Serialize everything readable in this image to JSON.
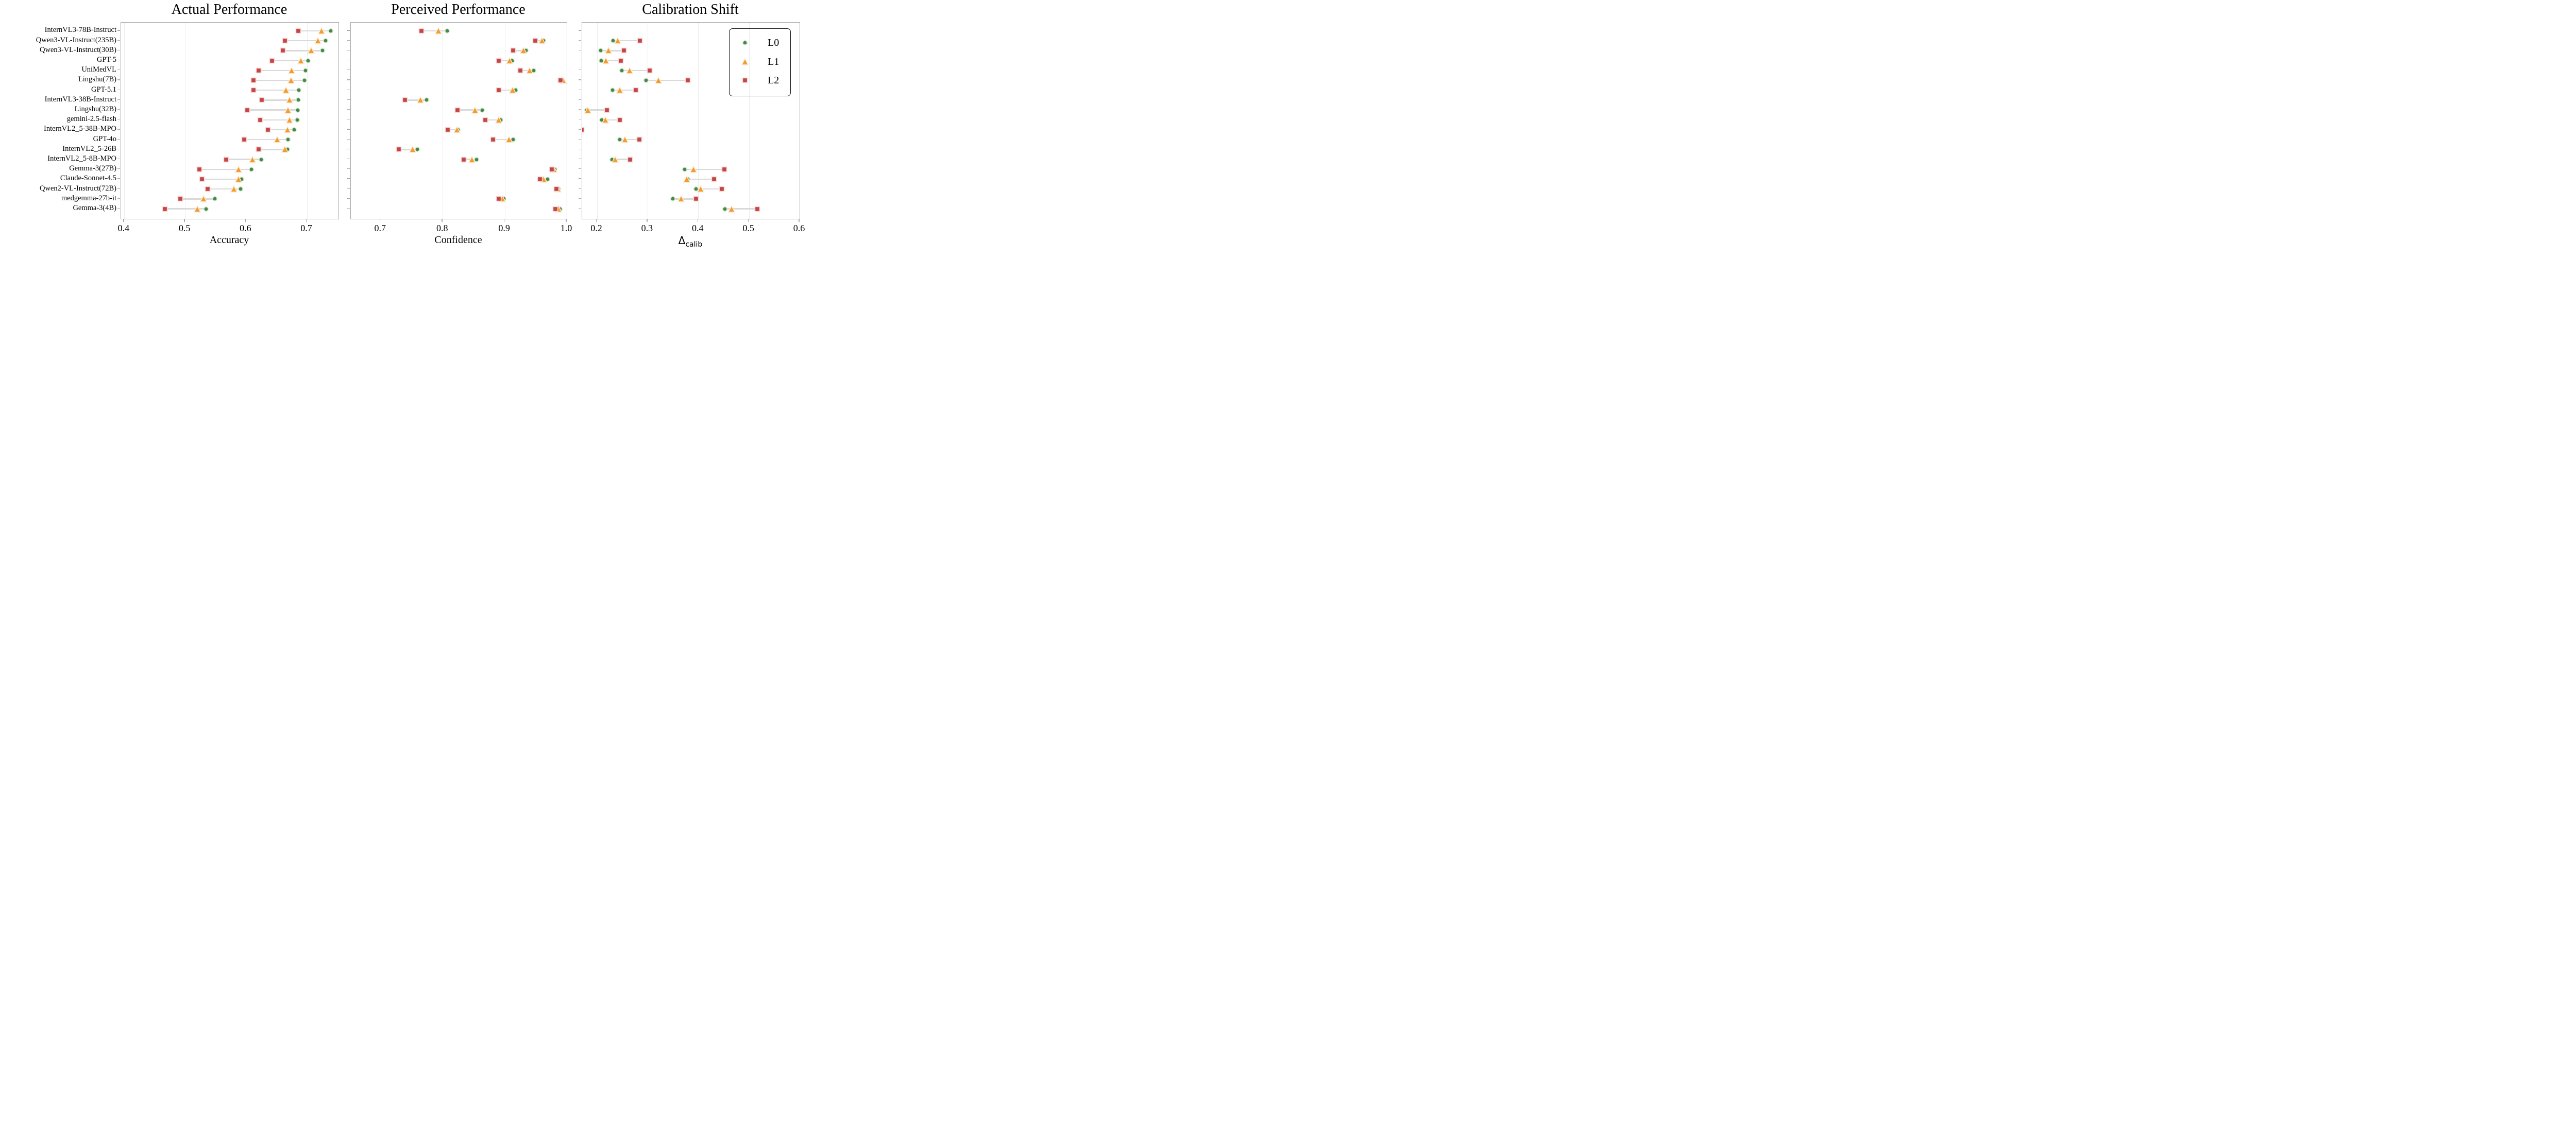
{
  "figure": {
    "background": "#ffffff"
  },
  "series_meta": {
    "L0": {
      "label": "L0",
      "shape": "circle",
      "fill": "#468846",
      "edge": "#d6e9d4"
    },
    "L1": {
      "label": "L1",
      "shape": "triangle",
      "fill": "#f39a30",
      "edge": "#fcecd2"
    },
    "L2": {
      "label": "L2",
      "shape": "square",
      "fill": "#c44545",
      "edge": "#f6d8d8"
    }
  },
  "legend": {
    "entries": [
      "L0",
      "L1",
      "L2"
    ]
  },
  "connector_color": "#d9d9d9",
  "grid_color": "#ececec",
  "spine_color": "#ababab",
  "models": [
    "InternVL3-78B-Instruct",
    "Qwen3-VL-Instruct(235B)",
    "Qwen3-VL-Instruct(30B)",
    "GPT-5",
    "UniMedVL",
    "Lingshu(7B)",
    "GPT-5.1",
    "InternVL3-38B-Instruct",
    "Lingshu(32B)",
    "gemini-2.5-flash",
    "InternVL2_5-38B-MPO",
    "GPT-4o",
    "InternVL2_5-26B",
    "InternVL2_5-8B-MPO",
    "Gemma-3(27B)",
    "Claude-Sonnet-4.5",
    "Qwen2-VL-Instruct(72B)",
    "medgemma-27b-it",
    "Gemma-3(4B)"
  ],
  "chart_data": [
    {
      "type": "scatter",
      "title": "Actual Performance",
      "xlabel": "Accuracy",
      "xlim": [
        0.395,
        0.752
      ],
      "ticks": [
        0.4,
        0.5,
        0.6,
        0.7
      ],
      "tick_labels": [
        "0.4",
        "0.5",
        "0.6",
        "0.7"
      ],
      "grid": true,
      "categories": [
        "InternVL3-78B-Instruct",
        "Qwen3-VL-Instruct(235B)",
        "Qwen3-VL-Instruct(30B)",
        "GPT-5",
        "UniMedVL",
        "Lingshu(7B)",
        "GPT-5.1",
        "InternVL3-38B-Instruct",
        "Lingshu(32B)",
        "gemini-2.5-flash",
        "InternVL2_5-38B-MPO",
        "GPT-4o",
        "InternVL2_5-26B",
        "InternVL2_5-8B-MPO",
        "Gemma-3(27B)",
        "Claude-Sonnet-4.5",
        "Qwen2-VL-Instruct(72B)",
        "medgemma-27b-it",
        "Gemma-3(4B)"
      ],
      "series": [
        {
          "name": "L0",
          "values": [
            0.739,
            0.731,
            0.726,
            0.702,
            0.698,
            0.696,
            0.687,
            0.686,
            0.685,
            0.684,
            0.679,
            0.669,
            0.668,
            0.625,
            0.609,
            0.593,
            0.591,
            0.549,
            0.535
          ]
        },
        {
          "name": "L1",
          "values": [
            0.724,
            0.718,
            0.707,
            0.69,
            0.675,
            0.674,
            0.666,
            0.672,
            0.669,
            0.672,
            0.668,
            0.651,
            0.664,
            0.611,
            0.588,
            0.588,
            0.58,
            0.53,
            0.52
          ]
        },
        {
          "name": "L2",
          "values": [
            0.686,
            0.664,
            0.661,
            0.643,
            0.621,
            0.612,
            0.612,
            0.626,
            0.602,
            0.623,
            0.636,
            0.597,
            0.621,
            0.568,
            0.524,
            0.528,
            0.537,
            0.492,
            0.467
          ]
        }
      ]
    },
    {
      "type": "scatter",
      "title": "Perceived Performance",
      "xlabel": "Confidence",
      "xlim": [
        0.652,
        1.0
      ],
      "ticks": [
        0.7,
        0.8,
        0.9,
        1.0
      ],
      "tick_labels": [
        "0.7",
        "0.8",
        "0.9",
        "1.0"
      ],
      "grid": true,
      "categories": [
        "InternVL3-78B-Instruct",
        "Qwen3-VL-Instruct(235B)",
        "Qwen3-VL-Instruct(30B)",
        "GPT-5",
        "UniMedVL",
        "Lingshu(7B)",
        "GPT-5.1",
        "InternVL3-38B-Instruct",
        "Lingshu(32B)",
        "gemini-2.5-flash",
        "InternVL2_5-38B-MPO",
        "GPT-4o",
        "InternVL2_5-26B",
        "InternVL2_5-8B-MPO",
        "Gemma-3(27B)",
        "Claude-Sonnet-4.5",
        "Qwen2-VL-Instruct(72B)",
        "medgemma-27b-it",
        "Gemma-3(4B)"
      ],
      "series": [
        {
          "name": "L0",
          "values": [
            0.807,
            0.963,
            0.934,
            0.912,
            0.947,
            0.993,
            0.918,
            0.774,
            0.864,
            0.894,
            0.825,
            0.914,
            0.759,
            0.855,
            0.981,
            0.969,
            0.987,
            0.899,
            0.989
          ]
        },
        {
          "name": "L1",
          "values": [
            0.793,
            0.96,
            0.93,
            0.908,
            0.94,
            0.994,
            0.913,
            0.764,
            0.852,
            0.89,
            0.823,
            0.907,
            0.752,
            0.847,
            0.979,
            0.963,
            0.986,
            0.896,
            0.987
          ]
        },
        {
          "name": "L2",
          "values": [
            0.766,
            0.949,
            0.914,
            0.89,
            0.925,
            0.99,
            0.89,
            0.739,
            0.824,
            0.869,
            0.808,
            0.881,
            0.729,
            0.834,
            0.976,
            0.957,
            0.983,
            0.89,
            0.982
          ]
        }
      ]
    },
    {
      "type": "scatter",
      "title": "Calibration Shift",
      "xlabel": "Δ",
      "xlabel_sub": "calib",
      "xlim": [
        0.171,
        0.6
      ],
      "ticks": [
        0.2,
        0.3,
        0.4,
        0.5,
        0.6
      ],
      "tick_labels": [
        "0.2",
        "0.3",
        "0.4",
        "0.5",
        "0.6"
      ],
      "grid": true,
      "legend_position": "upper right",
      "categories": [
        "InternVL3-78B-Instruct",
        "Qwen3-VL-Instruct(235B)",
        "Qwen3-VL-Instruct(30B)",
        "GPT-5",
        "UniMedVL",
        "Lingshu(7B)",
        "GPT-5.1",
        "InternVL3-38B-Instruct",
        "Lingshu(32B)",
        "gemini-2.5-flash",
        "InternVL2_5-38B-MPO",
        "GPT-4o",
        "InternVL2_5-26B",
        "InternVL2_5-8B-MPO",
        "Gemma-3(27B)",
        "Claude-Sonnet-4.5",
        "Qwen2-VL-Instruct(72B)",
        "medgemma-27b-it",
        "Gemma-3(4B)"
      ],
      "series": [
        {
          "name": "L0",
          "values": [
            null,
            0.232,
            0.208,
            0.209,
            0.249,
            0.297,
            0.231,
            null,
            0.18,
            0.21,
            null,
            0.245,
            null,
            0.23,
            0.373,
            0.379,
            0.396,
            0.35,
            0.453
          ]
        },
        {
          "name": "L1",
          "values": [
            null,
            0.241,
            0.223,
            0.218,
            0.265,
            0.321,
            0.245,
            null,
            0.182,
            0.217,
            null,
            0.255,
            null,
            0.236,
            0.391,
            0.377,
            0.405,
            0.366,
            0.466
          ]
        },
        {
          "name": "L2",
          "values": [
            null,
            0.285,
            0.253,
            0.247,
            0.304,
            0.379,
            0.277,
            null,
            0.22,
            0.245,
            0.17,
            0.284,
            null,
            0.266,
            0.452,
            0.431,
            0.447,
            0.396,
            0.517
          ]
        }
      ]
    }
  ]
}
